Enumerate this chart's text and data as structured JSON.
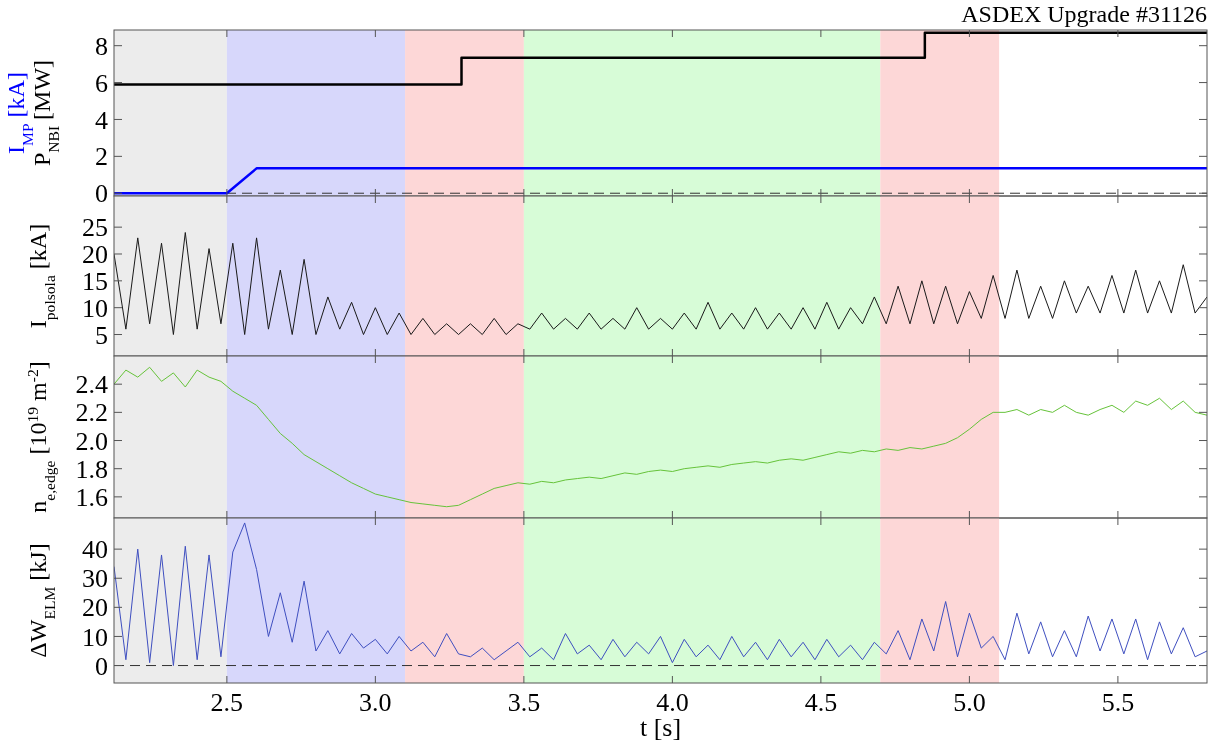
{
  "chart_data": [
    {
      "type": "line",
      "title": "ASDEX Upgrade #31126",
      "x": [
        2.12,
        3.29,
        4.85,
        5.8
      ],
      "xlim": [
        2.12,
        5.8
      ],
      "xticks": [
        {
          "value": 2.5,
          "label": null
        },
        {
          "value": 3,
          "label": null
        },
        {
          "value": 3.5,
          "label": null
        },
        {
          "value": 4,
          "label": null
        },
        {
          "value": 4.5,
          "label": null
        },
        {
          "value": 5,
          "label": null
        },
        {
          "value": 5.5,
          "label": null
        }
      ],
      "ylim": [
        -0.15,
        8.85
      ],
      "yticks": [
        0,
        2,
        4,
        6,
        8
      ],
      "tick_labels": "y",
      "series": [
        {
          "name": "I$_{MP}$ [kA]",
          "color": "#0000ff",
          "x": [
            2.12,
            2.5,
            2.6,
            5.8
          ],
          "values": [
            0,
            0,
            1.35,
            1.35
          ]
        },
        {
          "name": "P$_{NBI}$ [MW]",
          "color": "#000000",
          "type": "step",
          "values": [
            5.9,
            7.35,
            8.7,
            8.7
          ]
        }
      ],
      "ref_lines": [
        {
          "axis": "y",
          "value": 0,
          "line_style": "dashed",
          "color": "#333333"
        }
      ],
      "bands": [
        {
          "axis": "x",
          "from": 2.12,
          "to": 2.5,
          "color": "#ececec"
        },
        {
          "axis": "x",
          "from": 2.5,
          "to": 3.1,
          "color": "#d7d7fb"
        },
        {
          "axis": "x",
          "from": 3.1,
          "to": 3.5,
          "color": "#fdd7d7"
        },
        {
          "axis": "x",
          "from": 3.5,
          "to": 4.7,
          "color": "#d7fcd7"
        },
        {
          "axis": "x",
          "from": 4.7,
          "to": 5.1,
          "color": "#fdd7d7"
        }
      ]
    },
    {
      "type": "line",
      "ylabel": "I$_{polsola}$ [kA]",
      "x": [
        2.12,
        2.16,
        2.2,
        2.24,
        2.28,
        2.32,
        2.36,
        2.4,
        2.44,
        2.48,
        2.52,
        2.56,
        2.6,
        2.64,
        2.68,
        2.72,
        2.76,
        2.8,
        2.84,
        2.88,
        2.92,
        2.96,
        3.0,
        3.04,
        3.08,
        3.12,
        3.16,
        3.2,
        3.24,
        3.28,
        3.32,
        3.36,
        3.4,
        3.44,
        3.48,
        3.52,
        3.56,
        3.6,
        3.64,
        3.68,
        3.72,
        3.76,
        3.8,
        3.84,
        3.88,
        3.92,
        3.96,
        4.0,
        4.04,
        4.08,
        4.12,
        4.16,
        4.2,
        4.24,
        4.28,
        4.32,
        4.36,
        4.4,
        4.44,
        4.48,
        4.52,
        4.56,
        4.6,
        4.64,
        4.68,
        4.72,
        4.76,
        4.8,
        4.84,
        4.88,
        4.92,
        4.96,
        5.0,
        5.04,
        5.08,
        5.12,
        5.16,
        5.2,
        5.24,
        5.28,
        5.32,
        5.36,
        5.4,
        5.44,
        5.48,
        5.52,
        5.56,
        5.6,
        5.64,
        5.68,
        5.72,
        5.76,
        5.8
      ],
      "xlim": [
        2.12,
        5.8
      ],
      "xticks": [
        {
          "value": 2.5,
          "label": null
        },
        {
          "value": 3,
          "label": null
        },
        {
          "value": 3.5,
          "label": null
        },
        {
          "value": 4,
          "label": null
        },
        {
          "value": 4.5,
          "label": null
        },
        {
          "value": 5,
          "label": null
        },
        {
          "value": 5.5,
          "label": null
        }
      ],
      "ylim": [
        1,
        30.8
      ],
      "yticks": [
        5,
        10,
        15,
        20,
        25
      ],
      "tick_labels": "y",
      "series": [
        {
          "color": "#1a1a1a",
          "values": [
            20,
            6,
            23,
            7,
            22,
            5,
            24,
            6,
            21,
            7,
            22,
            5,
            23,
            6,
            17,
            5,
            19,
            5,
            12,
            6,
            11,
            5,
            10,
            5,
            9,
            5,
            8,
            5,
            7,
            5,
            7,
            5,
            8,
            5,
            7,
            6,
            9,
            6,
            8,
            6,
            9,
            6,
            8,
            6,
            10,
            6,
            8,
            6,
            9,
            6,
            11,
            6,
            9,
            6,
            10,
            6,
            9,
            6,
            10,
            6,
            11,
            6,
            10,
            7,
            12,
            7,
            14,
            7,
            15,
            7,
            14,
            7,
            13,
            8,
            16,
            8,
            17,
            8,
            14,
            8,
            15,
            9,
            14,
            9,
            16,
            9,
            17,
            9,
            15,
            9,
            18,
            9,
            12
          ]
        }
      ],
      "bands": [
        {
          "axis": "x",
          "from": 2.12,
          "to": 2.5,
          "color": "#ececec"
        },
        {
          "axis": "x",
          "from": 2.5,
          "to": 3.1,
          "color": "#d7d7fb"
        },
        {
          "axis": "x",
          "from": 3.1,
          "to": 3.5,
          "color": "#fdd7d7"
        },
        {
          "axis": "x",
          "from": 3.5,
          "to": 4.7,
          "color": "#d7fcd7"
        },
        {
          "axis": "x",
          "from": 4.7,
          "to": 5.1,
          "color": "#fdd7d7"
        }
      ]
    },
    {
      "type": "line",
      "ylabel": "n$_{e,edge}$ [10$^{19}$ m$^{-2}$]",
      "x": [
        2.12,
        2.16,
        2.2,
        2.24,
        2.28,
        2.32,
        2.36,
        2.4,
        2.44,
        2.48,
        2.52,
        2.56,
        2.6,
        2.64,
        2.68,
        2.72,
        2.76,
        2.8,
        2.84,
        2.88,
        2.92,
        2.96,
        3.0,
        3.04,
        3.08,
        3.12,
        3.16,
        3.2,
        3.24,
        3.28,
        3.32,
        3.36,
        3.4,
        3.44,
        3.48,
        3.52,
        3.56,
        3.6,
        3.64,
        3.68,
        3.72,
        3.76,
        3.8,
        3.84,
        3.88,
        3.92,
        3.96,
        4.0,
        4.04,
        4.08,
        4.12,
        4.16,
        4.2,
        4.24,
        4.28,
        4.32,
        4.36,
        4.4,
        4.44,
        4.48,
        4.52,
        4.56,
        4.6,
        4.64,
        4.68,
        4.72,
        4.76,
        4.8,
        4.84,
        4.88,
        4.92,
        4.96,
        5.0,
        5.04,
        5.08,
        5.12,
        5.16,
        5.2,
        5.24,
        5.28,
        5.32,
        5.36,
        5.4,
        5.44,
        5.48,
        5.52,
        5.56,
        5.6,
        5.64,
        5.68,
        5.72,
        5.76,
        5.8
      ],
      "xlim": [
        2.12,
        5.8
      ],
      "xticks": [
        {
          "value": 2.5,
          "label": null
        },
        {
          "value": 3,
          "label": null
        },
        {
          "value": 3.5,
          "label": null
        },
        {
          "value": 4,
          "label": null
        },
        {
          "value": 4.5,
          "label": null
        },
        {
          "value": 5,
          "label": null
        },
        {
          "value": 5.5,
          "label": null
        }
      ],
      "ylim": [
        1.45,
        2.6
      ],
      "yticks": [
        1.6,
        1.8,
        {
          "value": 2,
          "label": "2.0"
        },
        2.2,
        2.4
      ],
      "tick_labels": "y",
      "series": [
        {
          "color": "#66c33a",
          "values": [
            2.4,
            2.5,
            2.45,
            2.52,
            2.42,
            2.48,
            2.38,
            2.5,
            2.45,
            2.42,
            2.35,
            2.3,
            2.25,
            2.15,
            2.05,
            1.98,
            1.9,
            1.85,
            1.8,
            1.75,
            1.7,
            1.66,
            1.62,
            1.6,
            1.58,
            1.56,
            1.55,
            1.54,
            1.53,
            1.54,
            1.58,
            1.62,
            1.66,
            1.68,
            1.7,
            1.69,
            1.71,
            1.7,
            1.72,
            1.73,
            1.74,
            1.73,
            1.75,
            1.77,
            1.76,
            1.78,
            1.79,
            1.78,
            1.8,
            1.81,
            1.82,
            1.81,
            1.83,
            1.84,
            1.85,
            1.84,
            1.86,
            1.87,
            1.86,
            1.88,
            1.9,
            1.92,
            1.91,
            1.93,
            1.92,
            1.94,
            1.93,
            1.95,
            1.94,
            1.96,
            1.98,
            2.02,
            2.08,
            2.15,
            2.2,
            2.2,
            2.22,
            2.18,
            2.22,
            2.2,
            2.25,
            2.2,
            2.18,
            2.22,
            2.25,
            2.2,
            2.28,
            2.25,
            2.3,
            2.22,
            2.28,
            2.2,
            2.18
          ]
        }
      ],
      "bands": [
        {
          "axis": "x",
          "from": 2.12,
          "to": 2.5,
          "color": "#ececec"
        },
        {
          "axis": "x",
          "from": 2.5,
          "to": 3.1,
          "color": "#d7d7fb"
        },
        {
          "axis": "x",
          "from": 3.1,
          "to": 3.5,
          "color": "#fdd7d7"
        },
        {
          "axis": "x",
          "from": 3.5,
          "to": 4.7,
          "color": "#d7fcd7"
        },
        {
          "axis": "x",
          "from": 4.7,
          "to": 5.1,
          "color": "#fdd7d7"
        }
      ]
    },
    {
      "type": "line",
      "ylabel": "ΔW$_{ELM}$ [kJ]",
      "xlabel": "t [s]",
      "x": [
        2.12,
        2.16,
        2.2,
        2.24,
        2.28,
        2.32,
        2.36,
        2.4,
        2.44,
        2.48,
        2.52,
        2.56,
        2.6,
        2.64,
        2.68,
        2.72,
        2.76,
        2.8,
        2.84,
        2.88,
        2.92,
        2.96,
        3.0,
        3.04,
        3.08,
        3.12,
        3.16,
        3.2,
        3.24,
        3.28,
        3.32,
        3.36,
        3.4,
        3.44,
        3.48,
        3.52,
        3.56,
        3.6,
        3.64,
        3.68,
        3.72,
        3.76,
        3.8,
        3.84,
        3.88,
        3.92,
        3.96,
        4.0,
        4.04,
        4.08,
        4.12,
        4.16,
        4.2,
        4.24,
        4.28,
        4.32,
        4.36,
        4.4,
        4.44,
        4.48,
        4.52,
        4.56,
        4.6,
        4.64,
        4.68,
        4.72,
        4.76,
        4.8,
        4.84,
        4.88,
        4.92,
        4.96,
        5.0,
        5.04,
        5.08,
        5.12,
        5.16,
        5.2,
        5.24,
        5.28,
        5.32,
        5.36,
        5.4,
        5.44,
        5.48,
        5.52,
        5.56,
        5.6,
        5.64,
        5.68,
        5.72,
        5.76,
        5.8
      ],
      "xlim": [
        2.12,
        5.8
      ],
      "xticks": [
        {
          "value": 2.5,
          "label": "2.5"
        },
        {
          "value": 3,
          "label": "3.0"
        },
        {
          "value": 3.5,
          "label": "3.5"
        },
        {
          "value": 4,
          "label": "4.0"
        },
        {
          "value": 4.5,
          "label": "4.5"
        },
        {
          "value": 5,
          "label": "5.0"
        },
        {
          "value": 5.5,
          "label": "5.5"
        }
      ],
      "ylim": [
        -6,
        50.7
      ],
      "yticks": [
        0,
        10,
        20,
        30,
        40
      ],
      "series": [
        {
          "color": "#3f4fc0",
          "values": [
            34,
            2,
            40,
            1,
            38,
            0,
            41,
            2,
            38,
            3,
            39,
            49,
            33,
            10,
            25,
            8,
            29,
            5,
            12,
            4,
            11,
            6,
            9,
            4,
            10,
            5,
            8,
            3,
            11,
            4,
            3,
            6,
            2,
            5,
            8,
            3,
            6,
            2,
            11,
            4,
            7,
            2,
            9,
            3,
            8,
            4,
            10,
            1,
            9,
            3,
            7,
            2,
            10,
            3,
            8,
            2,
            9,
            3,
            8,
            2,
            9,
            3,
            7,
            2,
            8,
            4,
            12,
            2,
            16,
            5,
            22,
            3,
            18,
            6,
            10,
            2,
            18,
            4,
            15,
            3,
            12,
            3,
            17,
            5,
            16,
            4,
            16,
            2,
            15,
            4,
            13,
            3,
            5
          ]
        }
      ],
      "ref_lines": [
        {
          "axis": "y",
          "value": 0,
          "line_style": "dashed",
          "color": "#333333"
        }
      ],
      "bands": [
        {
          "axis": "x",
          "from": 2.12,
          "to": 2.5,
          "color": "#ececec"
        },
        {
          "axis": "x",
          "from": 2.5,
          "to": 3.1,
          "color": "#d7d7fb"
        },
        {
          "axis": "x",
          "from": 3.1,
          "to": 3.5,
          "color": "#fdd7d7"
        },
        {
          "axis": "x",
          "from": 3.5,
          "to": 4.7,
          "color": "#d7fcd7"
        },
        {
          "axis": "x",
          "from": 4.7,
          "to": 5.1,
          "color": "#fdd7d7"
        }
      ]
    }
  ]
}
